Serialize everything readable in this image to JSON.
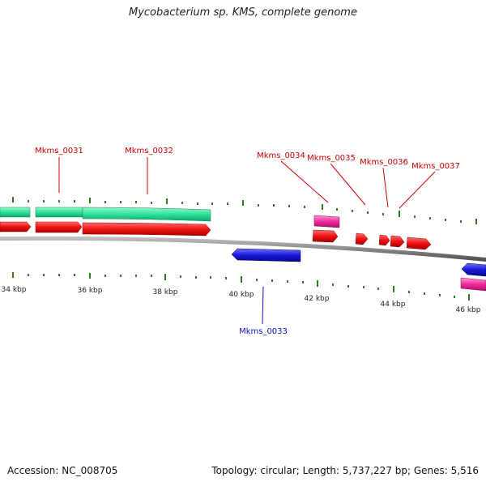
{
  "title": "Mycobacterium sp. KMS, complete genome",
  "footer": {
    "accession": "Accession: NC_008705",
    "summary": "Topology: circular; Length: 5,737,227 bp; Genes: 5,516"
  },
  "colors": {
    "backbone": "#8a8a8a",
    "tick": "#2e7d1f",
    "teal_feature": "#2de39a",
    "red_feature": "#ee1111",
    "pink_feature": "#ee2a9a",
    "blue_feature": "#1a1ad8",
    "label_forward": "#cc0000",
    "label_reverse": "#1010bb"
  },
  "scale_labels": [
    "34 kbp",
    "36 kbp",
    "38 kbp",
    "40 kbp",
    "42 kbp",
    "44 kbp",
    "46 kbp"
  ],
  "gene_labels": [
    {
      "id": "g31",
      "text": "Mkms_0031",
      "strand": "forward"
    },
    {
      "id": "g32",
      "text": "Mkms_0032",
      "strand": "forward"
    },
    {
      "id": "g33",
      "text": "Mkms_0033",
      "strand": "reverse"
    },
    {
      "id": "g34",
      "text": "Mkms_0034",
      "strand": "forward"
    },
    {
      "id": "g35",
      "text": "Mkms_0035",
      "strand": "forward"
    },
    {
      "id": "g36",
      "text": "Mkms_0036",
      "strand": "forward"
    },
    {
      "id": "g37",
      "text": "Mkms_0037",
      "strand": "forward"
    }
  ]
}
